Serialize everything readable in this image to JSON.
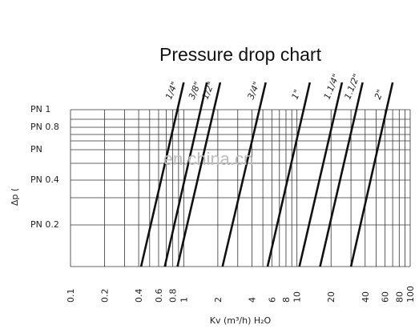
{
  "chart_data": {
    "type": "line",
    "title": "Pressure drop chart",
    "xlabel": "Kv (m³/h) H₂O",
    "ylabel": "Δp  (",
    "x_scale": "log",
    "xlim": [
      0.1,
      100
    ],
    "x_ticks": [
      "0.1",
      "0.2",
      "0.4",
      "0.6",
      "0.8",
      "1",
      "2",
      "4",
      "6",
      "8",
      "10",
      "20",
      "40",
      "60",
      "80",
      "100"
    ],
    "y_levels": [
      "PN 1",
      "PN 0.8",
      "PN 0.4",
      "PN 0.2"
    ],
    "series": [
      {
        "name": "1/4\"",
        "x_range": [
          0.42,
          1.0
        ]
      },
      {
        "name": "3/8\"",
        "x_range": [
          0.68,
          1.6
        ]
      },
      {
        "name": "1/2\"",
        "x_range": [
          0.88,
          2.1
        ]
      },
      {
        "name": "3/4\"",
        "x_range": [
          2.2,
          5.3
        ]
      },
      {
        "name": "1\"",
        "x_range": [
          5.5,
          13
        ]
      },
      {
        "name": "1.1/4\"",
        "x_range": [
          10.5,
          25
        ]
      },
      {
        "name": "1.1/2\"",
        "x_range": [
          16,
          38
        ]
      },
      {
        "name": "2\"",
        "x_range": [
          30,
          70
        ]
      }
    ],
    "grid": true
  },
  "watermark": "en.china.cn"
}
